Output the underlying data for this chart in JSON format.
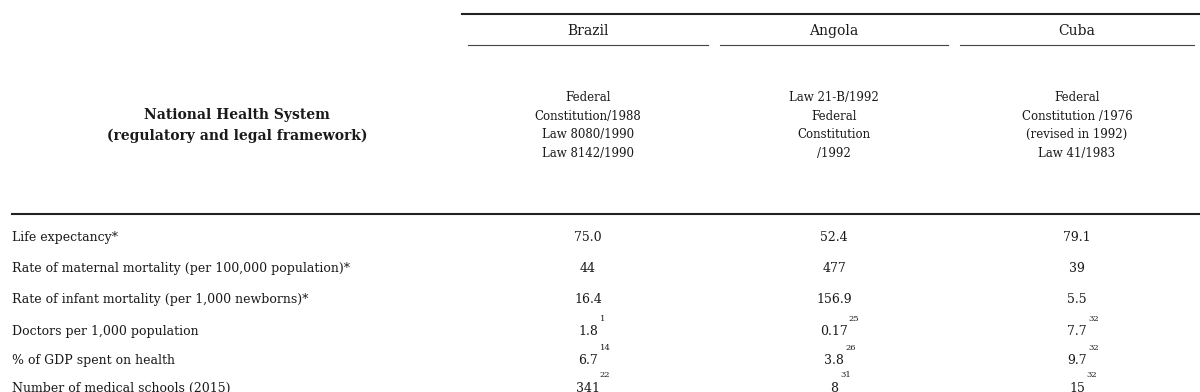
{
  "bg_color": "#ffffff",
  "text_color": "#1a1a1a",
  "col0_header_line1": "National Health System",
  "col0_header_line2": "(regulatory and legal framework)",
  "country_headers": [
    "Brazil",
    "Angola",
    "Cuba"
  ],
  "subheaders": [
    "Federal\nConstitution/1988\nLaw 8080/1990\nLaw 8142/1990",
    "Law 21-B/1992\nFederal\nConstitution\n/1992",
    "Federal\nConstitution /1976\n(revised in 1992)\nLaw 41/1983"
  ],
  "row_labels": [
    "Life expectancy*",
    "Rate of maternal mortality (per 100,000 population)*",
    "Rate of infant mortality (per 1,000 newborns)*",
    "Doctors per 1,000 population",
    "% of GDP spent on health",
    "Number of medical schools (2015)"
  ],
  "base_brazil": [
    "75.0",
    "44",
    "16.4",
    "1.8",
    "6.7",
    "341"
  ],
  "base_angola": [
    "52.4",
    "477",
    "156.9",
    "0.17",
    "3.8",
    "8"
  ],
  "base_cuba": [
    "79.1",
    "39",
    "5.5",
    "7.7",
    "9.7",
    "15"
  ],
  "super_brazil": [
    "",
    "",
    "",
    "1",
    "14",
    "22"
  ],
  "super_angola": [
    "",
    "",
    "",
    "25",
    "26",
    "31"
  ],
  "super_cuba": [
    "",
    "",
    "",
    "32",
    "32",
    "32"
  ],
  "fs_country": 10,
  "fs_subheader": 8.5,
  "fs_header0": 10,
  "fs_data": 9,
  "fs_row": 9,
  "fs_super": 6
}
